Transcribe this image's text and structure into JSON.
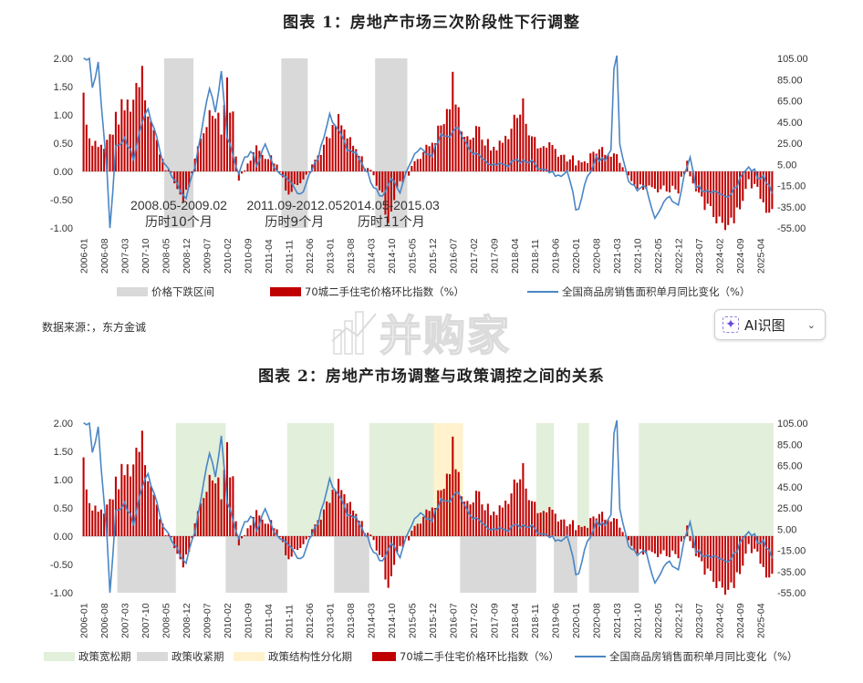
{
  "figure1": {
    "title": "图表 1：房地产市场三次阶段性下行调整",
    "source": "数据来源：，东方金诚",
    "legend": [
      "价格下跌区间",
      "70城二手住宅价格环比指数（%）",
      "全国商品房销售面积单月同比变化（%）"
    ],
    "annotations": [
      {
        "text": "2008.05-2009.02",
        "text2": "历时10个月"
      },
      {
        "text": "2011.09-2012.05",
        "text2": "历时9个月"
      },
      {
        "text": "2014.05-2015.03",
        "text2": "历时11个月"
      }
    ]
  },
  "figure2": {
    "title": "图表 2：房地产市场调整与政策调控之间的关系",
    "legend": [
      "政策宽松期",
      "政策收紧期",
      "政策结构性分化期",
      "70城二手住宅价格环比指数（%）",
      "全国商品房销售面积单月同比变化（%）"
    ]
  },
  "ai_button": {
    "label": "AI识图",
    "chevron": "⌄"
  },
  "watermark": {
    "text": "并购家"
  },
  "colors": {
    "bar": "#c00000",
    "line": "#4a86c5",
    "down_band": "#d9d9d9",
    "loose": "#e2efda",
    "tight": "#d9d9d9",
    "structural": "#fff2cc"
  },
  "chart_data": [
    {
      "type": "bar+line",
      "x_tick_labels": [
        "2006-01",
        "2006-08",
        "2007-03",
        "2007-10",
        "2008-05",
        "2008-12",
        "2009-07",
        "2010-02",
        "2010-09",
        "2011-04",
        "2011-11",
        "2012-06",
        "2013-01",
        "2013-08",
        "2014-03",
        "2014-10",
        "2015-05",
        "2015-12",
        "2016-07",
        "2017-02",
        "2017-09",
        "2018-04",
        "2018-11",
        "2019-06",
        "2020-01",
        "2020-08",
        "2021-03",
        "2021-10",
        "2022-05",
        "2022-12",
        "2023-07",
        "2024-02",
        "2024-09",
        "2025-04"
      ],
      "left_ticks": [
        "2.00",
        "1.50",
        "1.00",
        "0.50",
        "0.00",
        "-0.50",
        "-1.00"
      ],
      "right_ticks": [
        "105.00",
        "85.00",
        "65.00",
        "45.00",
        "25.00",
        "5.00",
        "-15.00",
        "-35.00",
        "-55.00"
      ],
      "ylim_left": [
        -1,
        2
      ],
      "ylim_right": [
        -55,
        105
      ],
      "shaded_ranges": [
        [
          "2008-05",
          "2009-02"
        ],
        [
          "2011-09",
          "2012-05"
        ],
        [
          "2014-05",
          "2015-03"
        ]
      ],
      "bar_keypoints": [
        [
          "2006-01",
          1.4
        ],
        [
          "2006-03",
          0.6
        ],
        [
          "2006-08",
          0.4
        ],
        [
          "2007-01",
          1.0
        ],
        [
          "2007-06",
          1.3
        ],
        [
          "2007-09",
          2.0
        ],
        [
          "2007-11",
          1.1
        ],
        [
          "2008-02",
          0.5
        ],
        [
          "2008-05",
          0.1
        ],
        [
          "2008-08",
          -0.2
        ],
        [
          "2008-11",
          -0.5
        ],
        [
          "2009-02",
          -0.1
        ],
        [
          "2009-04",
          0.4
        ],
        [
          "2009-07",
          0.9
        ],
        [
          "2009-10",
          1.2
        ],
        [
          "2009-12",
          0.8
        ],
        [
          "2010-02",
          1.6
        ],
        [
          "2010-04",
          0.9
        ],
        [
          "2010-06",
          -0.2
        ],
        [
          "2010-09",
          0.2
        ],
        [
          "2010-12",
          0.4
        ],
        [
          "2011-03",
          0.3
        ],
        [
          "2011-06",
          0.2
        ],
        [
          "2011-09",
          -0.1
        ],
        [
          "2011-11",
          -0.4
        ],
        [
          "2012-02",
          -0.2
        ],
        [
          "2012-05",
          0.0
        ],
        [
          "2012-08",
          0.2
        ],
        [
          "2013-01",
          0.6
        ],
        [
          "2013-04",
          0.9
        ],
        [
          "2013-08",
          0.5
        ],
        [
          "2013-12",
          0.2
        ],
        [
          "2014-03",
          0.0
        ],
        [
          "2014-06",
          -0.3
        ],
        [
          "2014-09",
          -0.8
        ],
        [
          "2014-12",
          -0.3
        ],
        [
          "2015-03",
          -0.1
        ],
        [
          "2015-06",
          0.2
        ],
        [
          "2015-10",
          0.4
        ],
        [
          "2016-01",
          0.6
        ],
        [
          "2016-05",
          1.0
        ],
        [
          "2016-07",
          1.5
        ],
        [
          "2016-09",
          1.0
        ],
        [
          "2016-12",
          0.6
        ],
        [
          "2017-04",
          0.7
        ],
        [
          "2017-08",
          0.4
        ],
        [
          "2017-12",
          0.5
        ],
        [
          "2018-04",
          0.9
        ],
        [
          "2018-07",
          1.1
        ],
        [
          "2018-09",
          0.8
        ],
        [
          "2018-12",
          0.4
        ],
        [
          "2019-04",
          0.5
        ],
        [
          "2019-08",
          0.3
        ],
        [
          "2019-12",
          0.2
        ],
        [
          "2020-03",
          0.1
        ],
        [
          "2020-06",
          0.3
        ],
        [
          "2020-10",
          0.4
        ],
        [
          "2021-03",
          0.3
        ],
        [
          "2021-07",
          0.0
        ],
        [
          "2021-10",
          -0.3
        ],
        [
          "2022-03",
          -0.3
        ],
        [
          "2022-07",
          -0.3
        ],
        [
          "2022-12",
          -0.3
        ],
        [
          "2023-03",
          0.2
        ],
        [
          "2023-06",
          -0.4
        ],
        [
          "2023-10",
          -0.7
        ],
        [
          "2024-01",
          -0.8
        ],
        [
          "2024-05",
          -0.9
        ],
        [
          "2024-09",
          -0.6
        ],
        [
          "2024-12",
          -0.2
        ],
        [
          "2025-03",
          -0.3
        ],
        [
          "2025-06",
          -0.6
        ],
        [
          "2025-08",
          -0.7
        ]
      ],
      "line_keypoints": [
        [
          "2006-01",
          105
        ],
        [
          "2006-03",
          105
        ],
        [
          "2006-04",
          75
        ],
        [
          "2006-06",
          100
        ],
        [
          "2006-07",
          65
        ],
        [
          "2006-09",
          0
        ],
        [
          "2006-10",
          -55
        ],
        [
          "2006-12",
          20
        ],
        [
          "2007-03",
          30
        ],
        [
          "2007-06",
          10
        ],
        [
          "2007-09",
          45
        ],
        [
          "2007-11",
          55
        ],
        [
          "2008-01",
          40
        ],
        [
          "2008-04",
          10
        ],
        [
          "2008-07",
          -5
        ],
        [
          "2008-10",
          -20
        ],
        [
          "2008-12",
          -25
        ],
        [
          "2009-03",
          0
        ],
        [
          "2009-05",
          35
        ],
        [
          "2009-07",
          65
        ],
        [
          "2009-08",
          75
        ],
        [
          "2009-10",
          55
        ],
        [
          "2009-12",
          90
        ],
        [
          "2010-02",
          30
        ],
        [
          "2010-04",
          15
        ],
        [
          "2010-06",
          -5
        ],
        [
          "2010-08",
          10
        ],
        [
          "2010-10",
          20
        ],
        [
          "2010-12",
          5
        ],
        [
          "2011-03",
          25
        ],
        [
          "2011-06",
          5
        ],
        [
          "2011-09",
          -5
        ],
        [
          "2011-12",
          -15
        ],
        [
          "2012-03",
          -25
        ],
        [
          "2012-06",
          -5
        ],
        [
          "2012-09",
          10
        ],
        [
          "2013-01",
          50
        ],
        [
          "2013-04",
          35
        ],
        [
          "2013-07",
          20
        ],
        [
          "2013-10",
          15
        ],
        [
          "2014-01",
          0
        ],
        [
          "2014-04",
          -15
        ],
        [
          "2014-07",
          -25
        ],
        [
          "2014-10",
          -10
        ],
        [
          "2015-01",
          -20
        ],
        [
          "2015-04",
          5
        ],
        [
          "2015-07",
          20
        ],
        [
          "2015-12",
          15
        ],
        [
          "2016-03",
          35
        ],
        [
          "2016-06",
          30
        ],
        [
          "2016-09",
          40
        ],
        [
          "2016-12",
          20
        ],
        [
          "2017-03",
          15
        ],
        [
          "2017-07",
          5
        ],
        [
          "2017-11",
          5
        ],
        [
          "2018-03",
          5
        ],
        [
          "2018-07",
          10
        ],
        [
          "2018-11",
          5
        ],
        [
          "2019-03",
          0
        ],
        [
          "2019-07",
          -5
        ],
        [
          "2019-10",
          0
        ],
        [
          "2020-01",
          -35
        ],
        [
          "2020-02",
          -40
        ],
        [
          "2020-05",
          -5
        ],
        [
          "2020-08",
          10
        ],
        [
          "2020-11",
          10
        ],
        [
          "2021-01",
          20
        ],
        [
          "2021-02",
          95
        ],
        [
          "2021-03",
          105
        ],
        [
          "2021-04",
          25
        ],
        [
          "2021-07",
          -10
        ],
        [
          "2021-10",
          -20
        ],
        [
          "2022-01",
          -15
        ],
        [
          "2022-04",
          -48
        ],
        [
          "2022-06",
          -35
        ],
        [
          "2022-09",
          -25
        ],
        [
          "2022-12",
          -33
        ],
        [
          "2023-02",
          -5
        ],
        [
          "2023-04",
          10
        ],
        [
          "2023-06",
          -15
        ],
        [
          "2023-09",
          -20
        ],
        [
          "2023-12",
          -22
        ],
        [
          "2024-04",
          -25
        ],
        [
          "2024-07",
          -20
        ],
        [
          "2024-10",
          -5
        ],
        [
          "2024-12",
          5
        ],
        [
          "2025-03",
          -5
        ],
        [
          "2025-06",
          -10
        ],
        [
          "2025-08",
          -20
        ]
      ]
    },
    {
      "type": "bar+line",
      "x_tick_labels": [
        "2006-01",
        "2006-08",
        "2007-03",
        "2007-10",
        "2008-05",
        "2008-12",
        "2009-07",
        "2010-02",
        "2010-09",
        "2011-04",
        "2011-11",
        "2012-06",
        "2013-01",
        "2013-08",
        "2014-03",
        "2014-10",
        "2015-05",
        "2015-12",
        "2016-07",
        "2017-02",
        "2017-09",
        "2018-04",
        "2018-11",
        "2019-06",
        "2020-01",
        "2020-08",
        "2021-03",
        "2021-10",
        "2022-05",
        "2022-12",
        "2023-07",
        "2024-02",
        "2024-09",
        "2025-04"
      ],
      "left_ticks": [
        "2.00",
        "1.50",
        "1.00",
        "0.50",
        "0.00",
        "-0.50",
        "-1.00"
      ],
      "right_ticks": [
        "105.00",
        "85.00",
        "65.00",
        "45.00",
        "25.00",
        "5.00",
        "-15.00",
        "-35.00",
        "-55.00"
      ],
      "ylim_left": [
        -1,
        2
      ],
      "ylim_right": [
        -55,
        105
      ],
      "loose_ranges": [
        [
          "2008-09",
          "2010-01"
        ],
        [
          "2011-11",
          "2013-02"
        ],
        [
          "2014-03",
          "2016-01"
        ],
        [
          "2018-12",
          "2019-05"
        ],
        [
          "2020-02",
          "2020-05"
        ],
        [
          "2021-11",
          "2025-08"
        ]
      ],
      "tight_ranges": [
        [
          "2007-01",
          "2008-08"
        ],
        [
          "2010-02",
          "2011-10"
        ],
        [
          "2013-03",
          "2014-02"
        ],
        [
          "2016-10",
          "2018-11"
        ],
        [
          "2019-06",
          "2020-01"
        ],
        [
          "2020-06",
          "2021-10"
        ]
      ],
      "structural_ranges": [
        [
          "2016-01",
          "2016-10"
        ]
      ],
      "same_series_as": "figure1"
    }
  ]
}
